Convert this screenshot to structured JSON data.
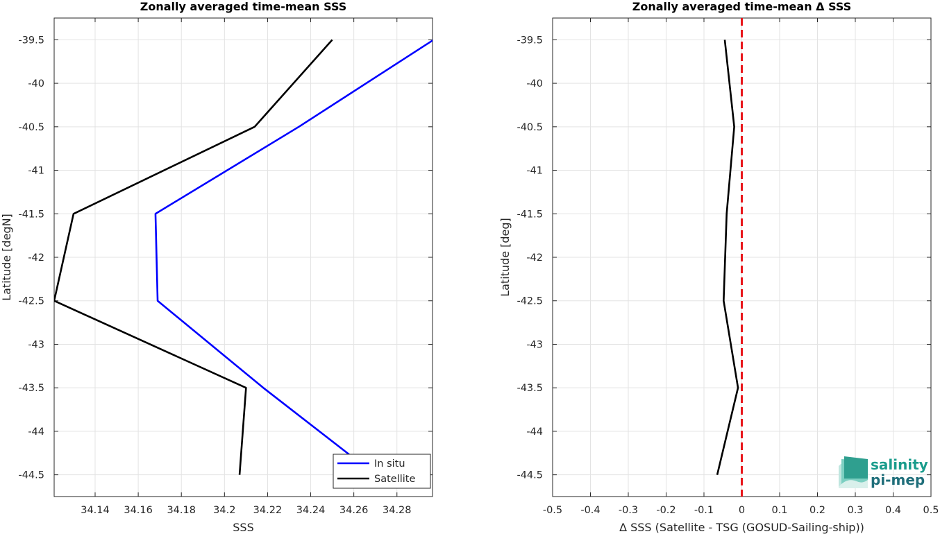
{
  "colors": {
    "in_situ": "#0000ff",
    "satellite": "#000000",
    "zero_line": "#e8161b",
    "logo_teal": "#1a9c8c",
    "logo_dark": "#1f6e7a"
  },
  "logo": {
    "line1": "salinity",
    "line2": "pi-mep"
  },
  "chart_data": [
    {
      "type": "line",
      "title": "Zonally averaged time-mean SSS",
      "xlabel": "SSS",
      "ylabel": "Latitude [degN]",
      "xlim": [
        34.121,
        34.2965
      ],
      "ylim": [
        -44.75,
        -39.25
      ],
      "xticks": [
        34.14,
        34.16,
        34.18,
        34.2,
        34.22,
        34.24,
        34.26,
        34.28
      ],
      "xtick_labels": [
        "34.14",
        "34.16",
        "34.18",
        "34.2",
        "34.22",
        "34.24",
        "34.26",
        "34.28"
      ],
      "yticks": [
        -39.5,
        -40,
        -40.5,
        -41,
        -41.5,
        -42,
        -42.5,
        -43,
        -43.5,
        -44,
        -44.5
      ],
      "ytick_labels": [
        "-39.5",
        "-40",
        "-40.5",
        "-41",
        "-41.5",
        "-42",
        "-42.5",
        "-43",
        "-43.5",
        "-44",
        "-44.5"
      ],
      "grid": true,
      "legend_position": "bottom-right",
      "y": [
        -39.5,
        -40.5,
        -41.5,
        -42.5,
        -43.5,
        -44.5
      ],
      "series": [
        {
          "name": "In situ",
          "values": [
            34.297,
            34.2345,
            34.168,
            34.169,
            34.218,
            34.27
          ]
        },
        {
          "name": "Satellite",
          "values": [
            34.25,
            34.214,
            34.13,
            34.121,
            34.21,
            34.207
          ]
        }
      ]
    },
    {
      "type": "line",
      "title": "Zonally averaged time-mean Δ SSS",
      "xlabel": "Δ SSS (Satellite - TSG (GOSUD-Sailing-ship))",
      "ylabel": "Latitude [deg]",
      "xlim": [
        -0.5,
        0.5
      ],
      "ylim": [
        -44.75,
        -39.25
      ],
      "xticks": [
        -0.5,
        -0.4,
        -0.3,
        -0.2,
        -0.1,
        0,
        0.1,
        0.2,
        0.3,
        0.4,
        0.5
      ],
      "xtick_labels": [
        "-0.5",
        "-0.4",
        "-0.3",
        "-0.2",
        "-0.1",
        "0",
        "0.1",
        "0.2",
        "0.3",
        "0.4",
        "0.5"
      ],
      "yticks": [
        -39.5,
        -40,
        -40.5,
        -41,
        -41.5,
        -42,
        -42.5,
        -43,
        -43.5,
        -44,
        -44.5
      ],
      "ytick_labels": [
        "-39.5",
        "-40",
        "-40.5",
        "-41",
        "-41.5",
        "-42",
        "-42.5",
        "-43",
        "-43.5",
        "-44",
        "-44.5"
      ],
      "grid": true,
      "reference_line": {
        "x": 0,
        "style": "dashed"
      },
      "y": [
        -39.5,
        -40.5,
        -41.5,
        -42.5,
        -43.5,
        -44.5
      ],
      "series": [
        {
          "values": [
            -0.045,
            -0.02,
            -0.04,
            -0.048,
            -0.01,
            -0.065
          ]
        }
      ]
    }
  ]
}
